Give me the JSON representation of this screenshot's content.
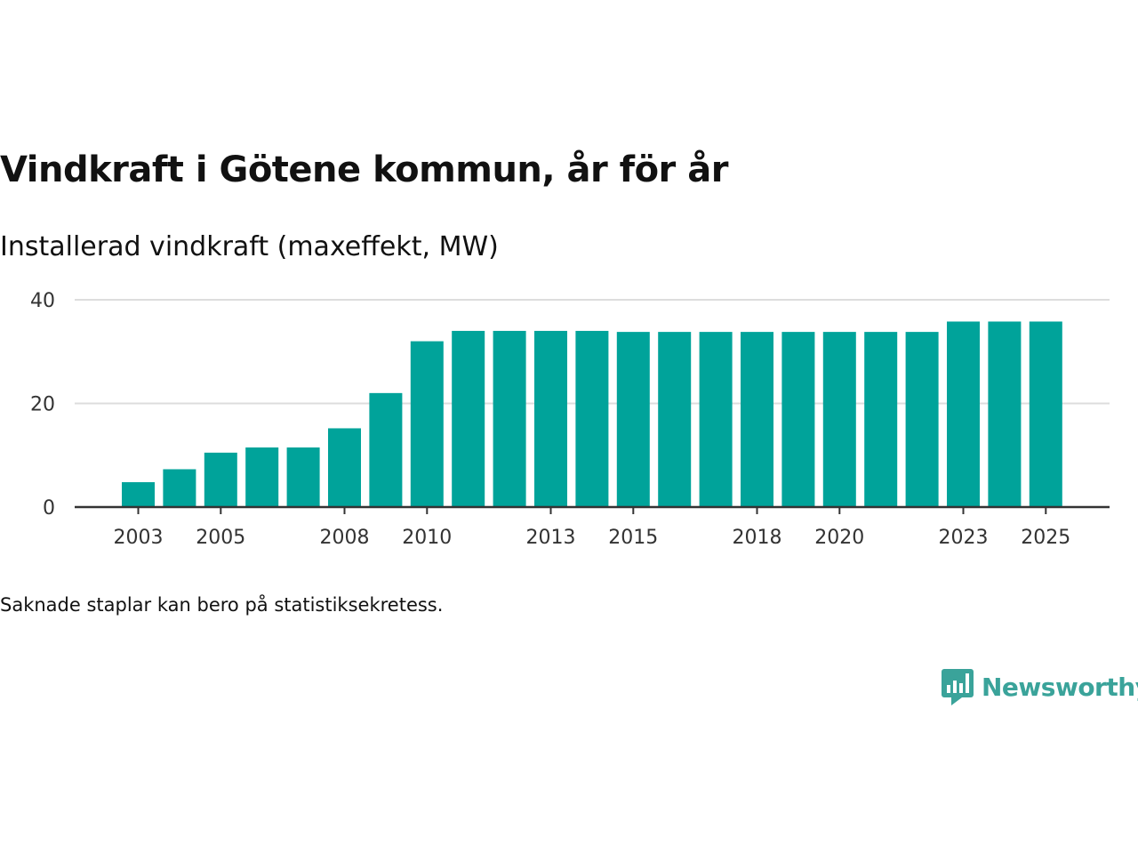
{
  "chart_data": {
    "type": "bar",
    "title": "Vindkraft i Götene kommun, år för år",
    "subtitle": "Installerad vindkraft (maxeffekt, MW)",
    "xlabel": "",
    "ylabel": "",
    "categories": [
      "2003",
      "2004",
      "2005",
      "2006",
      "2007",
      "2008",
      "2009",
      "2010",
      "2011",
      "2012",
      "2013",
      "2014",
      "2015",
      "2016",
      "2017",
      "2018",
      "2019",
      "2020",
      "2021",
      "2022",
      "2023",
      "2024",
      "2025"
    ],
    "values": [
      4.8,
      7.3,
      10.5,
      11.5,
      11.5,
      15.2,
      22.0,
      32.0,
      34.0,
      34.0,
      34.0,
      34.0,
      33.8,
      33.8,
      33.8,
      33.8,
      33.8,
      33.8,
      33.8,
      33.8,
      35.8,
      35.8,
      35.8
    ],
    "x_tick_labels": [
      "2003",
      "2005",
      "2008",
      "2010",
      "2013",
      "2015",
      "2018",
      "2020",
      "2023",
      "2025"
    ],
    "y_ticks": [
      0,
      20,
      40
    ],
    "ylim": [
      0,
      40
    ],
    "grid": true,
    "bar_color": "#00a39a",
    "footnote": "Saknade staplar kan bero på statistiksekretess."
  },
  "brand": {
    "name": "Newsworthy",
    "color": "#3aa39a"
  }
}
